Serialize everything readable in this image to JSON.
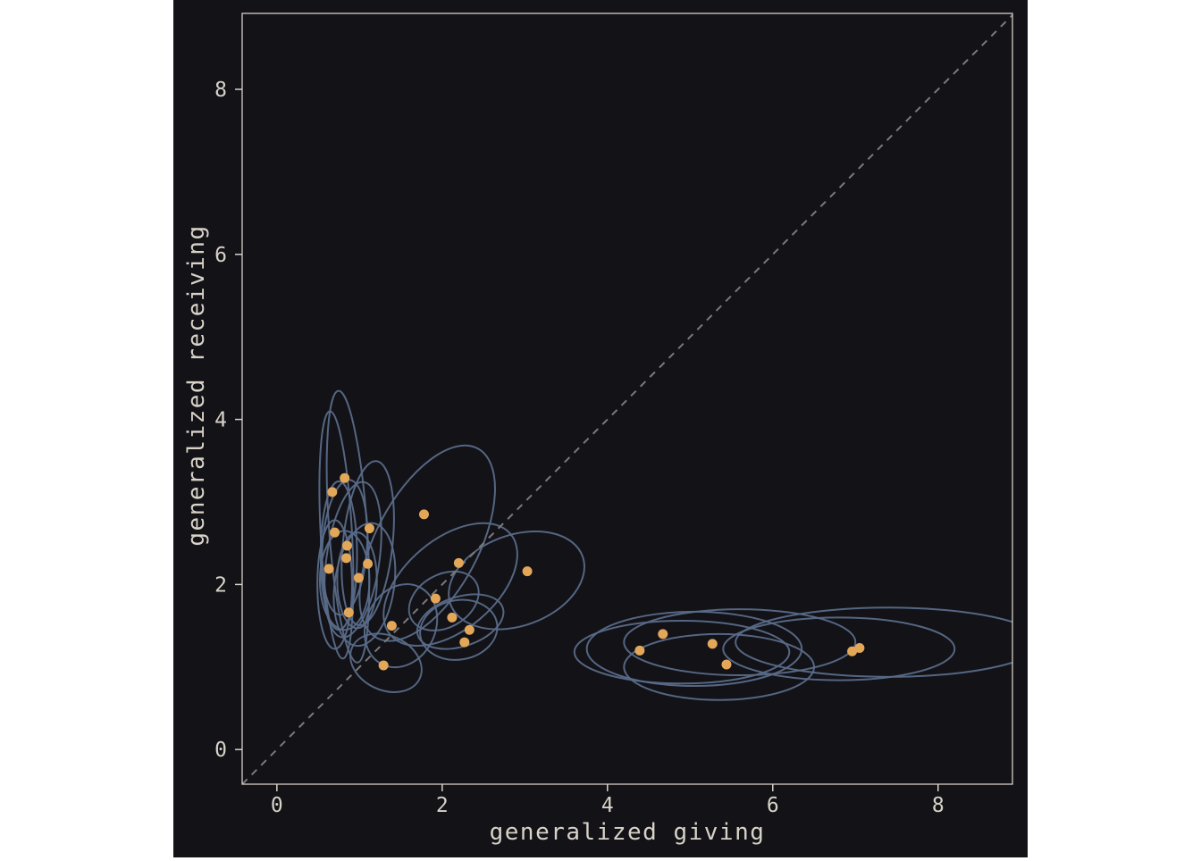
{
  "colors": {
    "background": "#121217",
    "panel_border": "#d6cfc6",
    "ellipse": "#5a6b88",
    "point": "#e3a75a",
    "diagonal": "#7a7a7a",
    "text": "#d8d2c8"
  },
  "chart_data": {
    "type": "scatter",
    "title": "",
    "xlabel": "generalized giving",
    "ylabel": "generalized receiving",
    "xlim": [
      -0.42,
      8.9
    ],
    "ylim": [
      -0.42,
      8.92
    ],
    "xticks": [
      "0",
      "2",
      "4",
      "6",
      "8"
    ],
    "yticks": [
      "0",
      "2",
      "4",
      "6",
      "8"
    ],
    "grid": false,
    "reference_line": "y = x (dashed)",
    "points": [
      {
        "x": 0.67,
        "y": 3.12
      },
      {
        "x": 0.82,
        "y": 3.29
      },
      {
        "x": 0.7,
        "y": 2.63
      },
      {
        "x": 0.85,
        "y": 2.47
      },
      {
        "x": 1.12,
        "y": 2.68
      },
      {
        "x": 0.84,
        "y": 2.32
      },
      {
        "x": 1.1,
        "y": 2.25
      },
      {
        "x": 0.63,
        "y": 2.19
      },
      {
        "x": 0.99,
        "y": 2.08
      },
      {
        "x": 0.87,
        "y": 1.66
      },
      {
        "x": 1.78,
        "y": 2.85
      },
      {
        "x": 2.2,
        "y": 2.26
      },
      {
        "x": 3.03,
        "y": 2.16
      },
      {
        "x": 1.92,
        "y": 1.83
      },
      {
        "x": 2.12,
        "y": 1.6
      },
      {
        "x": 1.39,
        "y": 1.5
      },
      {
        "x": 2.33,
        "y": 1.45
      },
      {
        "x": 2.27,
        "y": 1.3
      },
      {
        "x": 1.29,
        "y": 1.02
      },
      {
        "x": 4.39,
        "y": 1.2
      },
      {
        "x": 4.67,
        "y": 1.4
      },
      {
        "x": 5.27,
        "y": 1.28
      },
      {
        "x": 5.44,
        "y": 1.03
      },
      {
        "x": 6.96,
        "y": 1.19
      },
      {
        "x": 7.05,
        "y": 1.23
      }
    ],
    "ellipses": [
      {
        "cx": 0.72,
        "cy": 2.6,
        "rx": 0.19,
        "ry": 1.5,
        "angle": -3
      },
      {
        "cx": 0.86,
        "cy": 2.7,
        "rx": 0.23,
        "ry": 1.65,
        "angle": -4
      },
      {
        "cx": 0.75,
        "cy": 2.35,
        "rx": 0.22,
        "ry": 0.9,
        "angle": 0
      },
      {
        "cx": 0.82,
        "cy": 2.45,
        "rx": 0.27,
        "ry": 0.82,
        "angle": 4
      },
      {
        "cx": 0.92,
        "cy": 2.3,
        "rx": 0.32,
        "ry": 0.95,
        "angle": 8
      },
      {
        "cx": 1.1,
        "cy": 2.5,
        "rx": 0.3,
        "ry": 1.0,
        "angle": 6
      },
      {
        "cx": 0.7,
        "cy": 2.0,
        "rx": 0.21,
        "ry": 0.78,
        "angle": 0
      },
      {
        "cx": 0.82,
        "cy": 2.05,
        "rx": 0.3,
        "ry": 0.6,
        "angle": 0
      },
      {
        "cx": 1.06,
        "cy": 2.0,
        "rx": 0.36,
        "ry": 0.75,
        "angle": 8
      },
      {
        "cx": 0.97,
        "cy": 2.05,
        "rx": 0.24,
        "ry": 0.58,
        "angle": 0
      },
      {
        "cx": 1.82,
        "cy": 2.5,
        "rx": 0.62,
        "ry": 1.3,
        "angle": 28
      },
      {
        "cx": 2.1,
        "cy": 2.0,
        "rx": 0.95,
        "ry": 0.55,
        "angle": -40
      },
      {
        "cx": 2.9,
        "cy": 2.05,
        "rx": 0.85,
        "ry": 0.55,
        "angle": -20
      },
      {
        "cx": 2.02,
        "cy": 1.8,
        "rx": 0.45,
        "ry": 0.32,
        "angle": -30
      },
      {
        "cx": 1.5,
        "cy": 1.5,
        "rx": 0.42,
        "ry": 0.52,
        "angle": 25
      },
      {
        "cx": 2.22,
        "cy": 1.55,
        "rx": 0.54,
        "ry": 0.3,
        "angle": -18
      },
      {
        "cx": 2.2,
        "cy": 1.45,
        "rx": 0.47,
        "ry": 0.36,
        "angle": -10
      },
      {
        "cx": 1.32,
        "cy": 1.05,
        "rx": 0.45,
        "ry": 0.33,
        "angle": 25
      },
      {
        "cx": 5.05,
        "cy": 1.22,
        "rx": 1.3,
        "ry": 0.45,
        "angle": 0
      },
      {
        "cx": 4.9,
        "cy": 1.18,
        "rx": 1.3,
        "ry": 0.38,
        "angle": 0
      },
      {
        "cx": 5.6,
        "cy": 1.3,
        "rx": 1.4,
        "ry": 0.4,
        "angle": 0
      },
      {
        "cx": 5.35,
        "cy": 1.0,
        "rx": 1.15,
        "ry": 0.4,
        "angle": 0
      },
      {
        "cx": 7.4,
        "cy": 1.3,
        "rx": 1.85,
        "ry": 0.42,
        "angle": 0
      },
      {
        "cx": 6.8,
        "cy": 1.22,
        "rx": 1.4,
        "ry": 0.38,
        "angle": 0
      }
    ]
  }
}
